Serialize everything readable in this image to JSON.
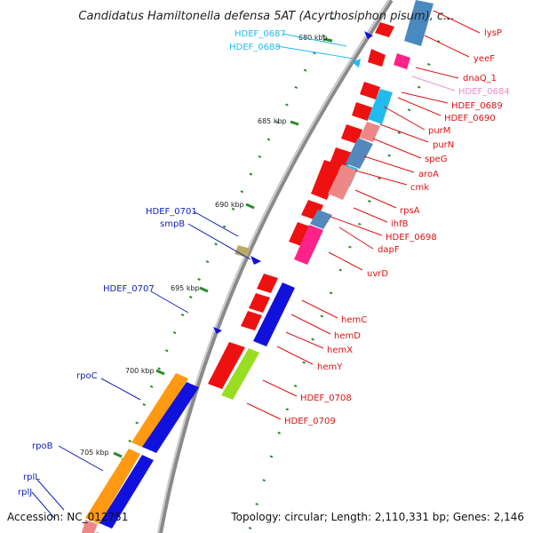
{
  "title": "Candidatus Hamiltonella defensa 5AT (Acyrthosiphon pisum), c...",
  "accession": "Accession: NC_012751",
  "topology": "Topology: circular; Length: 2,110,331 bp; Genes: 2,146",
  "colors": {
    "red_label": "#dd1111",
    "cyan_label": "#22bbee",
    "pink_label": "#ee88cc",
    "blue_label": "#1122bb",
    "backbone": "#8a8a8a",
    "tick": "#2a8a2a"
  },
  "ruler": [
    "680 kbp",
    "685 kbp",
    "690 kbp",
    "695 kbp",
    "700 kbp",
    "705 kbp"
  ],
  "genes_right": [
    "lysP",
    "yeeF",
    "dnaQ_1",
    "HDEF_0684",
    "HDEF_0689",
    "HDEF_0690",
    "purM",
    "purN",
    "speG",
    "aroA",
    "cmk",
    "rpsA",
    "ihfB",
    "HDEF_0698",
    "dapF",
    "uvrD",
    "hemC",
    "hemD",
    "hemX",
    "hemY",
    "HDEF_0708",
    "HDEF_0709"
  ],
  "genes_left": [
    "HDEF_0687",
    "HDEF_0688",
    "HDEF_0701",
    "smpB",
    "HDEF_0707",
    "rpoC",
    "rpoB",
    "rplL",
    "rplJ"
  ]
}
